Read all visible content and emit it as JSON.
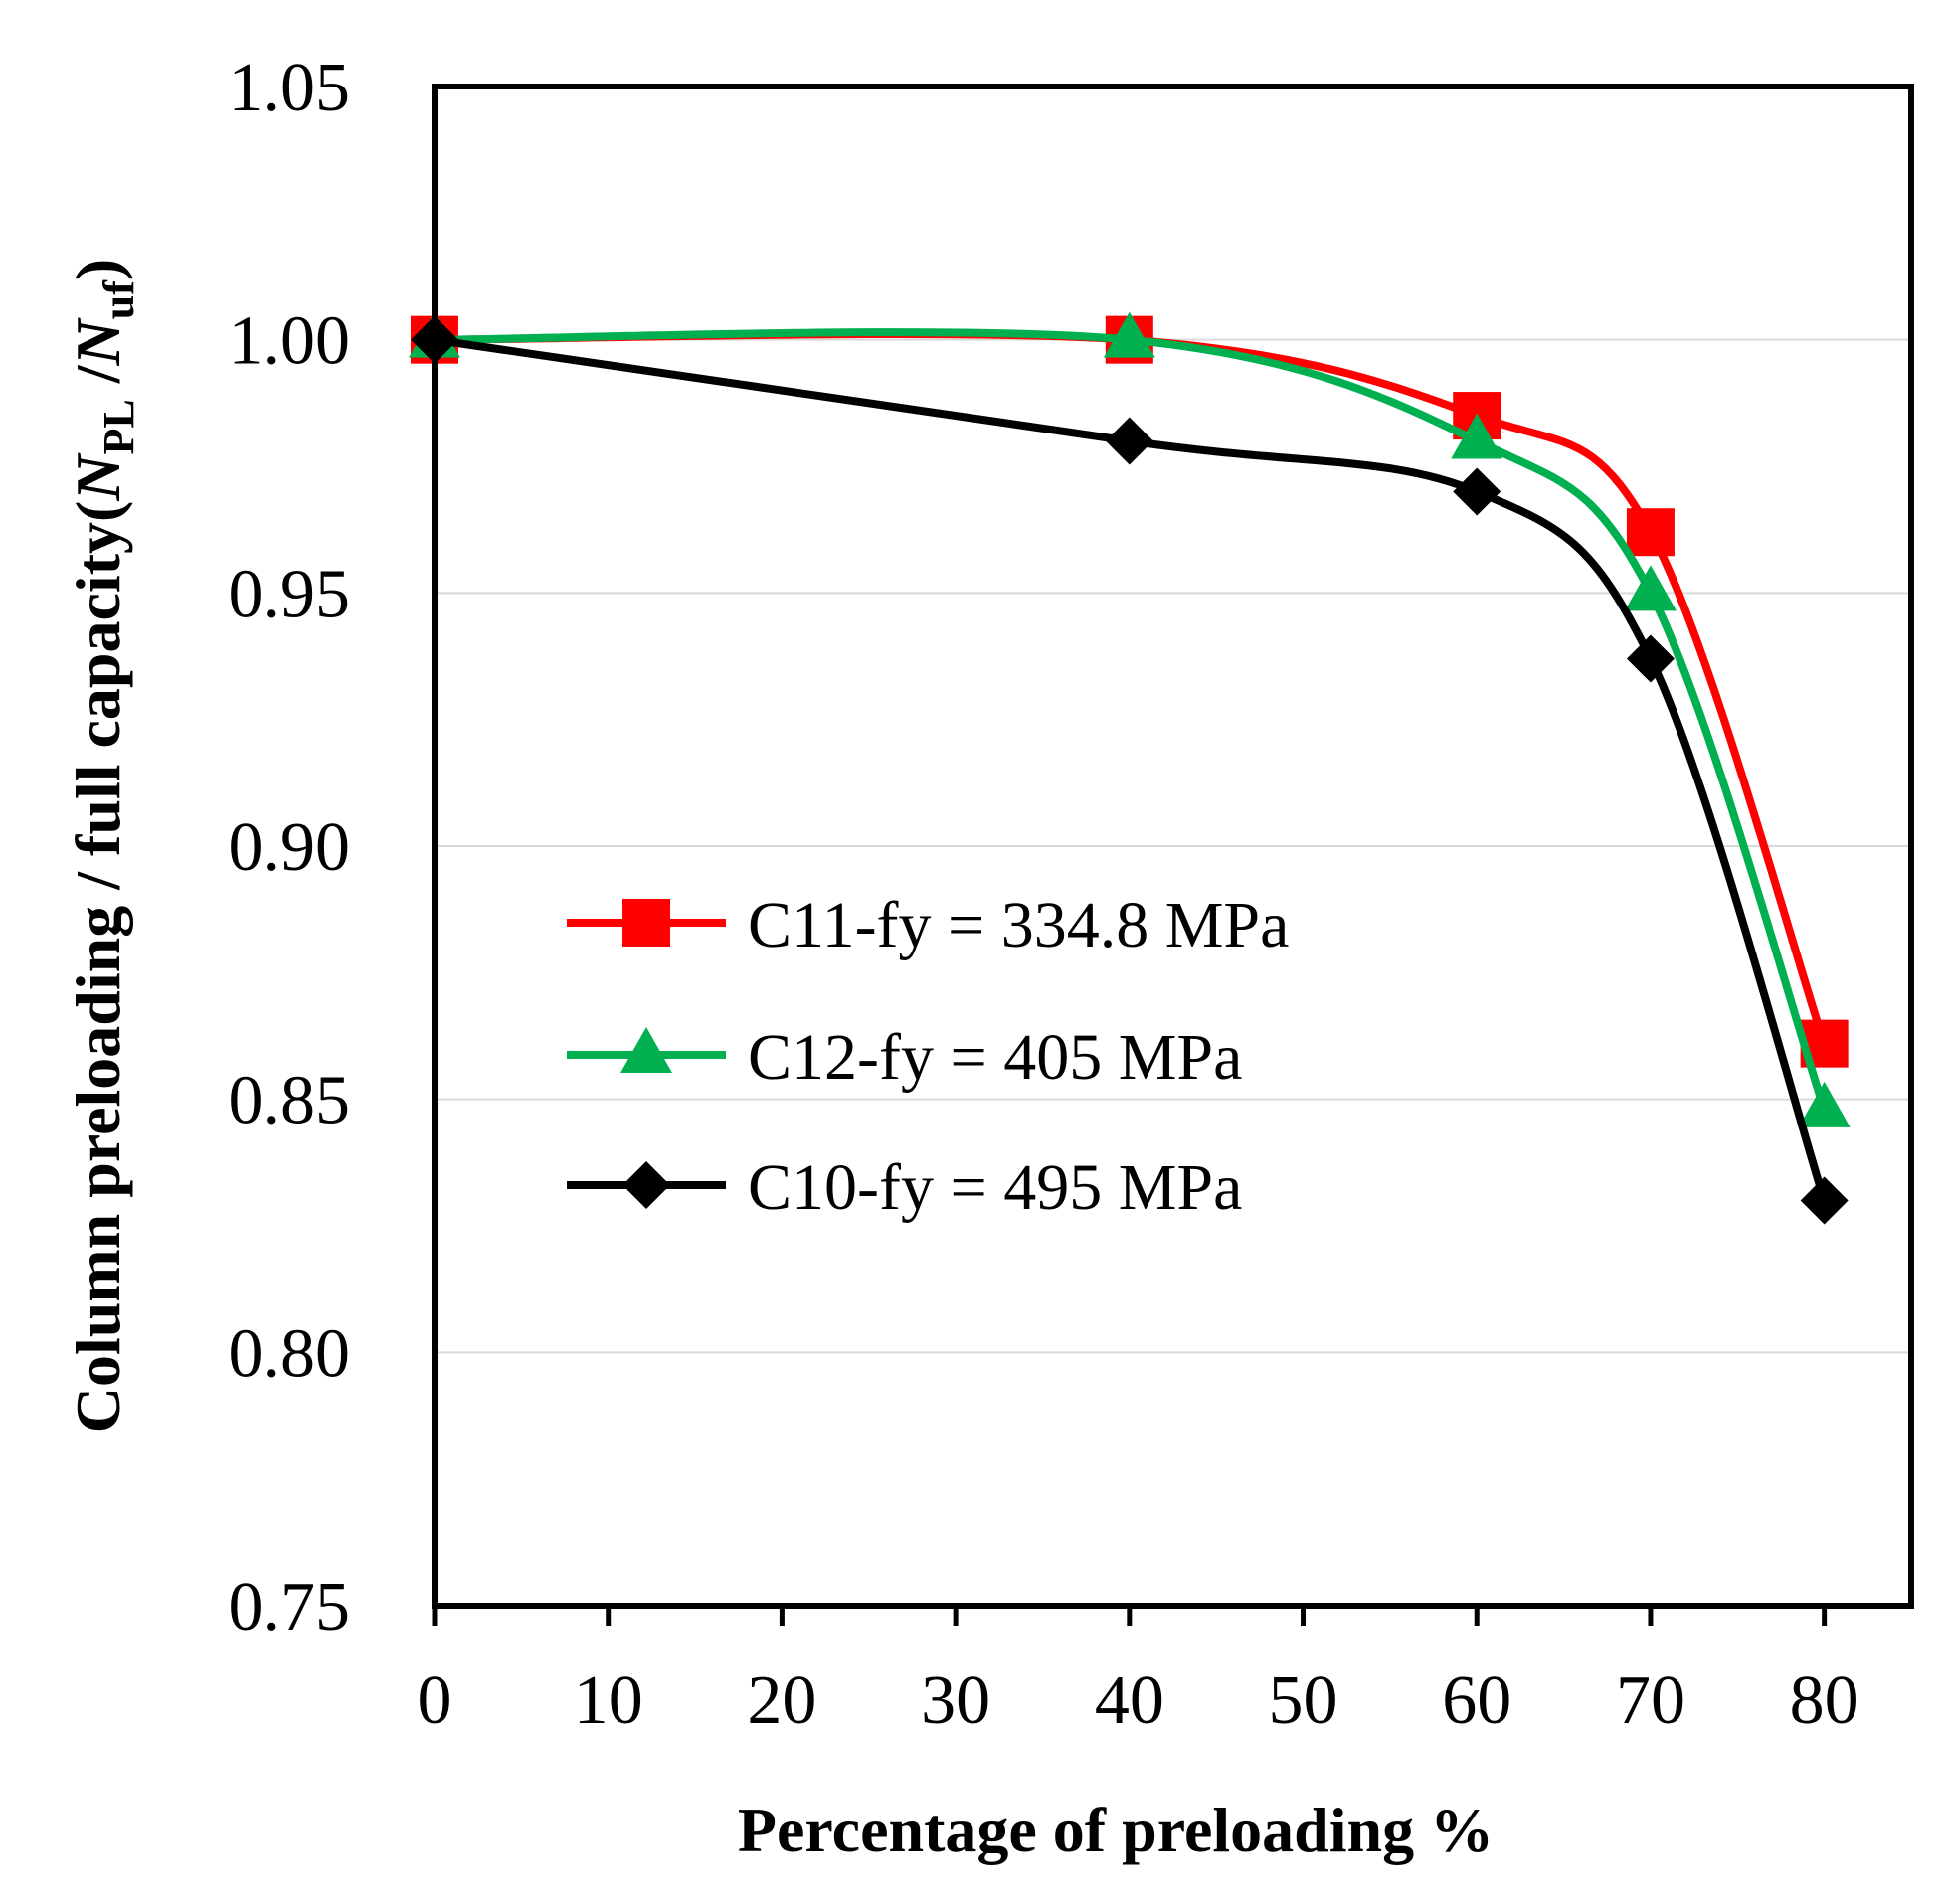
{
  "chart_data": {
    "type": "line",
    "title": "",
    "xlabel": "Percentage of preloading %",
    "ylabel": {
      "prefix": "Column preloading / full capacity(",
      "n1": "N",
      "sub1": "PL",
      "slash": " /",
      "n2": "N",
      "sub2": "uf",
      "suffix": ")"
    },
    "xlim": [
      0,
      85
    ],
    "ylim": [
      0.75,
      1.05
    ],
    "xticks": [
      0,
      10,
      20,
      30,
      40,
      50,
      60,
      70,
      80
    ],
    "xtick_labels": [
      "0",
      "10",
      "20",
      "30",
      "40",
      "50",
      "60",
      "70",
      "80"
    ],
    "yticks": [
      0.75,
      0.8,
      0.85,
      0.9,
      0.95,
      1.0,
      1.05
    ],
    "ytick_labels": [
      "0.75",
      "0.80",
      "0.85",
      "0.90",
      "0.95",
      "1.00",
      "1.05"
    ],
    "grid": "horizontal",
    "legend_position": "center-left",
    "x": [
      0,
      40,
      60,
      70,
      80
    ],
    "series": [
      {
        "name": "C11-fy = 334.8 MPa",
        "color": "#ff0000",
        "marker": "square",
        "values": [
          1.0,
          1.0,
          0.985,
          0.962,
          0.861
        ]
      },
      {
        "name": "C12-fy = 405 MPa",
        "color": "#00b050",
        "marker": "triangle",
        "values": [
          1.0,
          1.0,
          0.98,
          0.95,
          0.848
        ]
      },
      {
        "name": "C10-fy = 495 MPa",
        "color": "#000000",
        "marker": "diamond",
        "values": [
          1.0,
          0.98,
          0.97,
          0.937,
          0.83
        ]
      }
    ]
  }
}
